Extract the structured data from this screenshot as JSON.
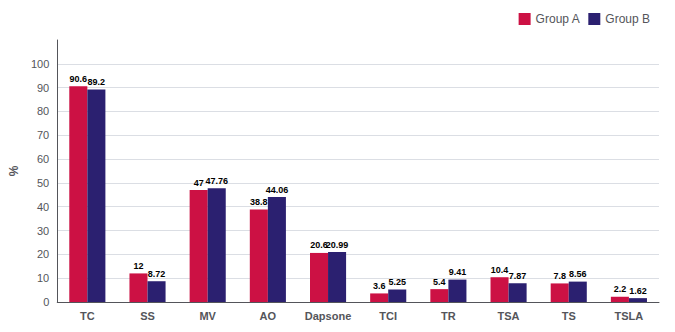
{
  "chart_data": {
    "type": "bar",
    "categories": [
      "TC",
      "SS",
      "MV",
      "AO",
      "Dapsone",
      "TCI",
      "TR",
      "TSA",
      "TS",
      "TSLA"
    ],
    "series": [
      {
        "name": "Group A",
        "color": "#CC1144",
        "values": [
          90.6,
          12,
          47,
          38.8,
          20.6,
          3.6,
          5.4,
          10.4,
          7.8,
          2.2
        ]
      },
      {
        "name": "Group B",
        "color": "#2B2070",
        "values": [
          89.2,
          8.72,
          47.76,
          44.06,
          20.99,
          5.25,
          9.41,
          7.87,
          8.56,
          1.62
        ]
      }
    ],
    "ylabel": "%",
    "ylim": [
      0,
      110
    ],
    "yticks": [
      0,
      10,
      20,
      30,
      40,
      50,
      60,
      70,
      80,
      90,
      100
    ],
    "grid": true,
    "legend": "upper right",
    "data_labels": true
  }
}
